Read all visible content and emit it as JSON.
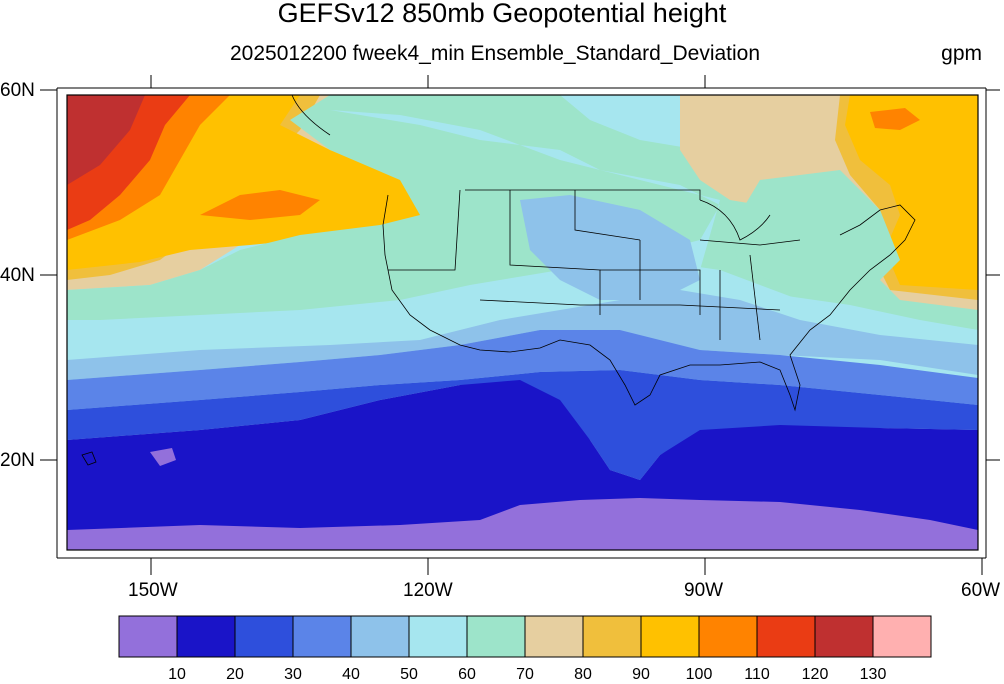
{
  "title": "GEFSv12 850mb Geopotential height",
  "subtitle": "2025012200 fweek4_min Ensemble_Standard_Deviation",
  "units": "gpm",
  "lat_labels": [
    "60N",
    "40N",
    "20N"
  ],
  "lon_labels": [
    "150W",
    "120W",
    "90W",
    "60W"
  ],
  "colorbar": {
    "colors": [
      "#9370db",
      "#1a14c8",
      "#2e4fdc",
      "#5b84e8",
      "#8ec2ea",
      "#a6e6ef",
      "#9de4ca",
      "#e6cfa0",
      "#f0bf3c",
      "#ffc100",
      "#ff8300",
      "#ea3c14",
      "#bf3030",
      "#ffb0b0"
    ],
    "labels": [
      "10",
      "20",
      "30",
      "40",
      "50",
      "60",
      "70",
      "80",
      "90",
      "100",
      "110",
      "120",
      "130"
    ]
  }
}
